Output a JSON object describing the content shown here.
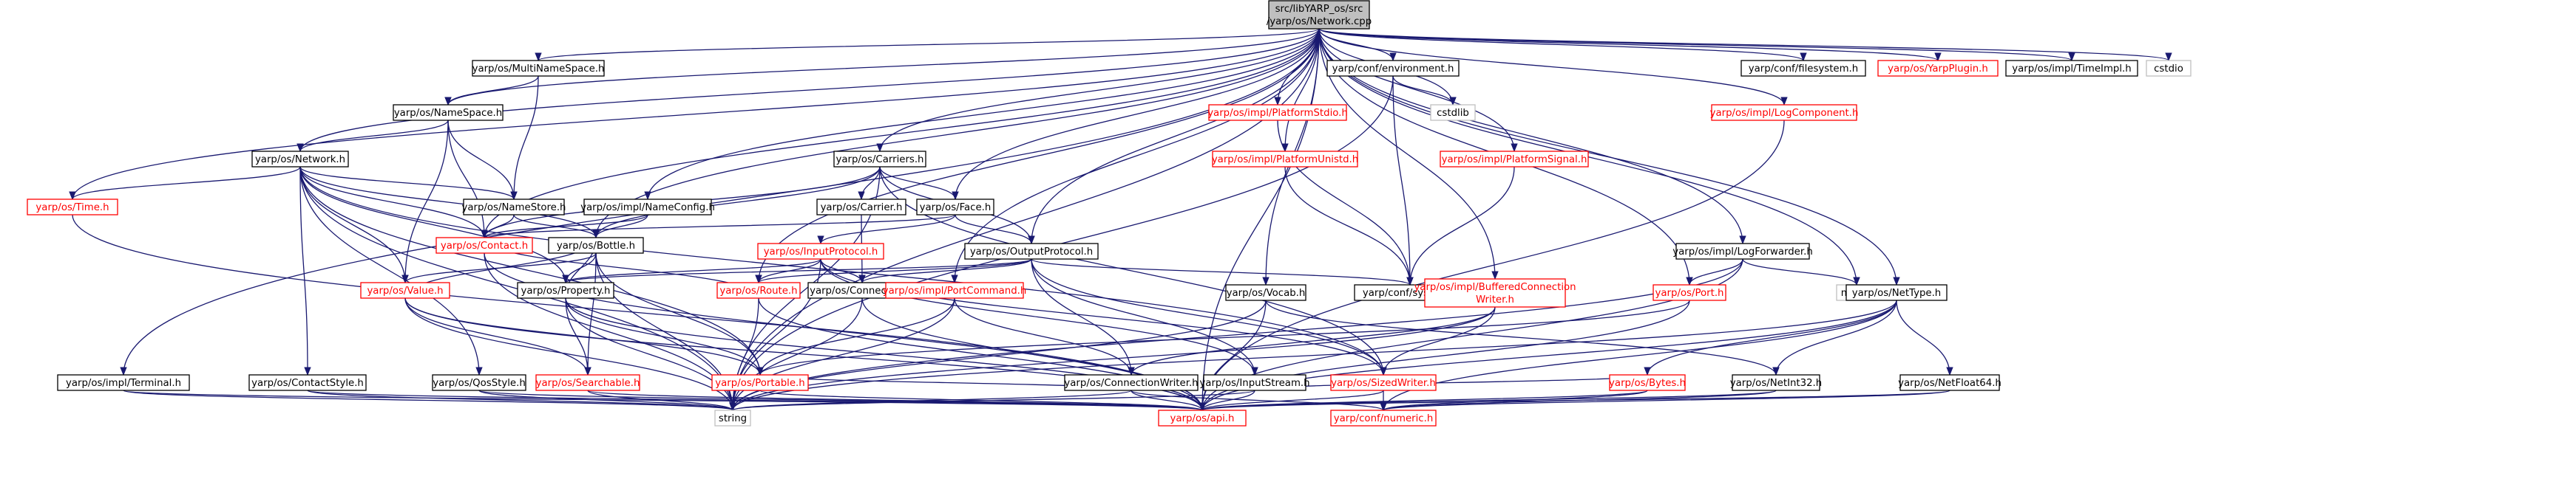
{
  "colors": {
    "edge": "#191970",
    "documented_border": "#000000",
    "undocumented_border": "#ff0000",
    "system_border": "#bfbfbf",
    "undocumented_text": "#ff0000",
    "root_fill": "#bfbfbf",
    "background": "#ffffff"
  },
  "root": {
    "line1": "src/libYARP_os/src",
    "line2": "/yarp/os/Network.cpp"
  },
  "nodes": {
    "multinamespace": "yarp/os/MultiNameSpace.h",
    "namespace": "yarp/os/NameSpace.h",
    "network": "yarp/os/Network.h",
    "time": "yarp/os/Time.h",
    "namestore": "yarp/os/NameStore.h",
    "contact": "yarp/os/Contact.h",
    "carriers": "yarp/os/Carriers.h",
    "nameconfig": "yarp/os/impl/NameConfig.h",
    "carrier": "yarp/os/Carrier.h",
    "face": "yarp/os/Face.h",
    "bottle": "yarp/os/Bottle.h",
    "inputprotocol": "yarp/os/InputProtocol.h",
    "outputprotocol": "yarp/os/OutputProtocol.h",
    "value": "yarp/os/Value.h",
    "property": "yarp/os/Property.h",
    "route": "yarp/os/Route.h",
    "connection": "yarp/os/Connection.h",
    "portcommand": "yarp/os/impl/PortCommand.h",
    "terminal": "yarp/os/impl/Terminal.h",
    "contactstyle": "yarp/os/ContactStyle.h",
    "qosstyle": "yarp/os/QosStyle.h",
    "searchable": "yarp/os/Searchable.h",
    "portable": "yarp/os/Portable.h",
    "string": "string",
    "environment": "yarp/conf/environment.h",
    "cstdlib": "cstdlib",
    "platformstdio": "yarp/os/impl/PlatformStdio.h",
    "platformunistd": "yarp/os/impl/PlatformUnistd.h",
    "platformsignal": "yarp/os/impl/PlatformSignal.h",
    "confsystem": "yarp/conf/system.h",
    "vocab": "yarp/os/Vocab.h",
    "bufferedwriter1": "yarp/os/impl/BufferedConnection",
    "bufferedwriter2": "Writer.h",
    "connectionwriter": "yarp/os/ConnectionWriter.h",
    "inputstream": "yarp/os/InputStream.h",
    "sizedwriter": "yarp/os/SizedWriter.h",
    "logforwarder": "yarp/os/impl/LogForwarder.h",
    "port": "yarp/os/Port.h",
    "mutex": "mutex",
    "logcomponent": "yarp/os/impl/LogComponent.h",
    "bytes": "yarp/os/Bytes.h",
    "api": "yarp/os/api.h",
    "numeric": "yarp/conf/numeric.h",
    "nettype": "yarp/os/NetType.h",
    "netint32": "yarp/os/NetInt32.h",
    "netfloat64": "yarp/os/NetFloat64.h",
    "filesystem": "yarp/conf/filesystem.h",
    "yarpplugin": "yarp/os/YarpPlugin.h",
    "timeimpl": "yarp/os/impl/TimeImpl.h",
    "cstdio": "cstdio"
  }
}
